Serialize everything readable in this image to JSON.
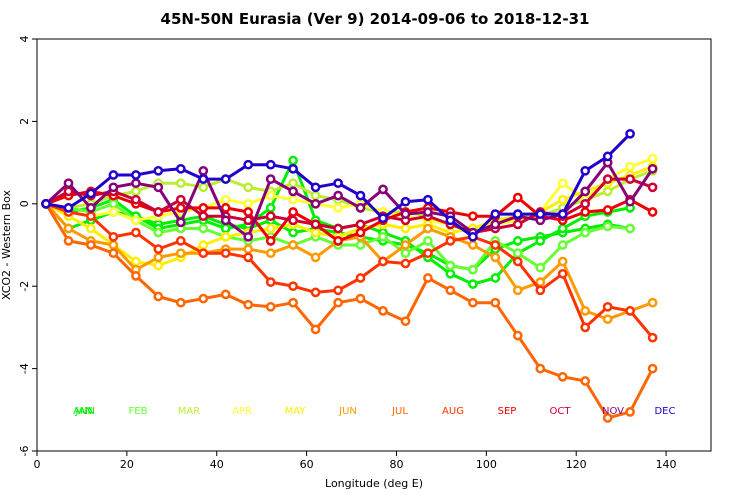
{
  "chart_data": {
    "type": "line",
    "title": "45N-50N Eurasia (Ver 9)   2014-09-06 to 2018-12-31",
    "xlabel": "Longitude (deg E)",
    "ylabel": "XCO2 - Western Box",
    "xlim": [
      0,
      150
    ],
    "ylim": [
      -6,
      4
    ],
    "xticks": [
      0,
      20,
      40,
      60,
      80,
      100,
      120,
      140
    ],
    "yticks": [
      -6,
      -4,
      -2,
      0,
      2,
      4
    ],
    "grid": false,
    "legend_position": "bottom-inside",
    "series": [
      {
        "name": "JAN",
        "color": "#00ee00",
        "x": [
          2,
          7,
          12,
          17,
          22,
          27,
          32,
          37,
          42,
          47,
          52,
          57,
          62,
          67,
          72,
          77,
          82,
          87,
          92,
          97,
          102,
          107,
          112,
          117,
          122,
          127,
          132
        ],
        "y": [
          0,
          -0.6,
          -0.4,
          -0.2,
          -0.3,
          -0.5,
          -0.4,
          -0.3,
          -0.5,
          -0.6,
          -0.4,
          -0.7,
          -0.6,
          -0.7,
          -0.8,
          -0.9,
          -1.0,
          -1.2,
          -1.5,
          -1.6,
          -1.1,
          -0.9,
          -0.8,
          -0.7,
          -0.6,
          -0.5,
          -0.6
        ]
      },
      {
        "name": "ANN",
        "color": "#00ee00",
        "x": [
          2,
          7,
          12,
          17,
          22,
          27,
          32,
          37,
          42,
          47,
          52,
          57,
          62,
          67,
          72,
          77,
          82,
          87,
          92,
          97,
          102,
          107,
          112,
          117,
          122,
          127,
          132
        ],
        "y": [
          0,
          -0.2,
          -0.1,
          0.1,
          -0.3,
          -0.6,
          -0.5,
          -0.4,
          -0.6,
          -0.5,
          -0.1,
          1.05,
          -0.4,
          -0.6,
          -0.5,
          -0.7,
          -0.9,
          -1.3,
          -1.7,
          -1.95,
          -1.8,
          -1.2,
          -0.9,
          -0.6,
          -0.3,
          -0.2,
          -0.1
        ]
      },
      {
        "name": "FEB",
        "color": "#66ff33",
        "x": [
          2,
          7,
          12,
          17,
          22,
          27,
          32,
          37,
          42,
          47,
          52,
          57,
          62,
          67,
          72,
          77,
          82,
          87,
          92,
          97,
          102,
          107,
          112,
          117,
          122,
          127,
          132
        ],
        "y": [
          0,
          -0.1,
          -0.2,
          0.0,
          -0.4,
          -0.7,
          -0.6,
          -0.6,
          -0.8,
          -0.9,
          -0.8,
          -1.0,
          -0.8,
          -1.0,
          -1.0,
          -0.8,
          -1.2,
          -0.9,
          -1.5,
          -1.6,
          -0.9,
          -1.2,
          -1.55,
          -1.0,
          -0.7,
          -0.55,
          -0.6
        ]
      },
      {
        "name": "MAR",
        "color": "#bbee33",
        "x": [
          2,
          7,
          12,
          17,
          22,
          27,
          32,
          37,
          42,
          47,
          52,
          57,
          62,
          67,
          72,
          77,
          82,
          87,
          92,
          97,
          102,
          107,
          112,
          117,
          122,
          127,
          132,
          137
        ],
        "y": [
          0,
          -0.1,
          0.0,
          0.2,
          0.3,
          0.5,
          0.5,
          0.4,
          0.6,
          0.4,
          0.3,
          0.5,
          0.2,
          0.1,
          -0.1,
          -0.2,
          -0.2,
          -0.3,
          -0.5,
          -0.6,
          -0.5,
          -0.4,
          -0.3,
          -0.1,
          0.1,
          0.3,
          0.6,
          0.8
        ]
      },
      {
        "name": "APR",
        "color": "#ffff33",
        "x": [
          2,
          7,
          12,
          17,
          22,
          27,
          32,
          37,
          42,
          47,
          52,
          57,
          62,
          67,
          72,
          77,
          82,
          87,
          92,
          97,
          102,
          107,
          112,
          117,
          122,
          127,
          132,
          137
        ],
        "y": [
          0,
          -0.2,
          -0.3,
          -0.2,
          -0.4,
          -0.3,
          -0.2,
          -0.1,
          0.1,
          0.0,
          0.2,
          0.1,
          0.0,
          -0.1,
          0.0,
          -0.2,
          -0.3,
          -0.4,
          -0.5,
          -0.6,
          -0.5,
          -0.4,
          -0.2,
          0.5,
          0.1,
          0.6,
          0.9,
          1.1
        ]
      },
      {
        "name": "MAY",
        "color": "#ffee00",
        "x": [
          2,
          7,
          12,
          17,
          22,
          27,
          32,
          37,
          42,
          47,
          52,
          57,
          62,
          67,
          72,
          77,
          82,
          87,
          92,
          97,
          102,
          107,
          112,
          117,
          122,
          127,
          132,
          137
        ],
        "y": [
          0,
          -0.3,
          -0.6,
          -1.0,
          -1.4,
          -1.5,
          -1.3,
          -1.0,
          -0.8,
          -0.7,
          -0.6,
          -0.5,
          -0.7,
          -0.8,
          -0.6,
          -0.5,
          -0.6,
          -0.5,
          -0.7,
          -0.6,
          -0.4,
          -0.3,
          -0.2,
          0.1,
          0.3,
          0.5,
          0.7,
          0.9
        ]
      },
      {
        "name": "JUN",
        "color": "#ff9900",
        "x": [
          2,
          7,
          12,
          17,
          22,
          27,
          32,
          37,
          42,
          47,
          52,
          57,
          62,
          67,
          72,
          77,
          82,
          87,
          92,
          97,
          102,
          107,
          112,
          117,
          122,
          127,
          132,
          137
        ],
        "y": [
          0,
          -0.6,
          -0.9,
          -1.0,
          -1.6,
          -1.3,
          -1.2,
          -1.2,
          -1.1,
          -1.1,
          -1.2,
          -1.0,
          -1.3,
          -0.9,
          -0.8,
          -1.4,
          -1.0,
          -0.6,
          -0.8,
          -1.0,
          -1.3,
          -2.1,
          -1.9,
          -1.4,
          -2.6,
          -2.8,
          -2.6,
          -2.4
        ]
      },
      {
        "name": "JUL",
        "color": "#ff6600",
        "x": [
          2,
          7,
          12,
          17,
          22,
          27,
          32,
          37,
          42,
          47,
          52,
          57,
          62,
          67,
          72,
          77,
          82,
          87,
          92,
          97,
          102,
          107,
          112,
          117,
          122,
          127,
          132,
          137
        ],
        "y": [
          0,
          -0.9,
          -1.0,
          -1.2,
          -1.75,
          -2.25,
          -2.4,
          -2.3,
          -2.2,
          -2.45,
          -2.5,
          -2.4,
          -3.05,
          -2.4,
          -2.3,
          -2.6,
          -2.85,
          -1.8,
          -2.1,
          -2.4,
          -2.4,
          -3.2,
          -4.0,
          -4.2,
          -4.3,
          -5.2,
          -5.05,
          -4.0
        ]
      },
      {
        "name": "AUG",
        "color": "#ff3300",
        "x": [
          2,
          7,
          12,
          17,
          22,
          27,
          32,
          37,
          42,
          47,
          52,
          57,
          62,
          67,
          72,
          77,
          82,
          87,
          92,
          97,
          102,
          107,
          112,
          117,
          122,
          127,
          132,
          137
        ],
        "y": [
          0,
          -0.2,
          -0.3,
          -0.8,
          -0.7,
          -1.1,
          -0.9,
          -1.2,
          -1.2,
          -1.3,
          -1.9,
          -2.0,
          -2.15,
          -2.1,
          -1.8,
          -1.4,
          -1.45,
          -1.2,
          -0.9,
          -0.8,
          -1.0,
          -1.4,
          -2.1,
          -1.7,
          -3.0,
          -2.5,
          -2.6,
          -3.25
        ]
      },
      {
        "name": "SEP",
        "color": "#ee0000",
        "x": [
          2,
          7,
          12,
          17,
          22,
          27,
          32,
          37,
          42,
          47,
          52,
          57,
          62,
          67,
          72,
          77,
          82,
          87,
          92,
          97,
          102,
          107,
          112,
          117,
          122,
          127,
          132,
          137
        ],
        "y": [
          0,
          0.2,
          0.3,
          0.2,
          0.0,
          -0.2,
          -0.1,
          -0.1,
          -0.1,
          -0.2,
          -0.9,
          -0.2,
          -0.5,
          -0.9,
          -0.7,
          -0.4,
          -0.2,
          -0.1,
          -0.2,
          -0.3,
          -0.3,
          0.15,
          -0.3,
          -0.4,
          -0.2,
          -0.15,
          0.1,
          -0.2
        ]
      },
      {
        "name": "OCT",
        "color": "#cc0033",
        "x": [
          2,
          7,
          12,
          17,
          22,
          27,
          32,
          37,
          42,
          47,
          52,
          57,
          62,
          67,
          72,
          77,
          82,
          87,
          92,
          97,
          102,
          107,
          112,
          117,
          122,
          127,
          132,
          137
        ],
        "y": [
          0,
          0.3,
          0.2,
          0.3,
          0.1,
          -0.2,
          0.1,
          -0.3,
          -0.3,
          -0.4,
          -0.3,
          -0.4,
          -0.5,
          -0.6,
          -0.5,
          -0.3,
          -0.4,
          -0.3,
          -0.5,
          -0.7,
          -0.6,
          -0.5,
          -0.2,
          -0.3,
          0.0,
          0.6,
          0.6,
          0.4
        ]
      },
      {
        "name": "NOV",
        "color": "#880077",
        "x": [
          2,
          7,
          12,
          17,
          22,
          27,
          32,
          37,
          42,
          47,
          52,
          57,
          62,
          67,
          72,
          77,
          82,
          87,
          92,
          97,
          102,
          107,
          112,
          117,
          122,
          127,
          132,
          137
        ],
        "y": [
          0,
          0.5,
          -0.1,
          0.4,
          0.5,
          0.4,
          -0.45,
          0.8,
          -0.4,
          -0.8,
          0.6,
          0.3,
          0.0,
          0.2,
          -0.1,
          0.35,
          -0.25,
          -0.2,
          -0.3,
          -0.7,
          -0.5,
          -0.3,
          -0.4,
          -0.25,
          0.3,
          1.0,
          0.05,
          0.85
        ]
      },
      {
        "name": "DEC",
        "color": "#2200cc",
        "x": [
          2,
          7,
          12,
          17,
          22,
          27,
          32,
          37,
          42,
          47,
          52,
          57,
          62,
          67,
          72,
          77,
          82,
          87,
          92,
          97,
          102,
          107,
          112,
          117,
          122,
          127,
          132
        ],
        "y": [
          0,
          -0.1,
          0.25,
          0.7,
          0.7,
          0.8,
          0.85,
          0.6,
          0.6,
          0.95,
          0.95,
          0.85,
          0.4,
          0.5,
          0.2,
          -0.35,
          0.05,
          0.1,
          -0.4,
          -0.8,
          -0.25,
          -0.25,
          -0.25,
          -0.25,
          0.8,
          1.15,
          1.7
        ]
      }
    ],
    "legend": [
      {
        "label": "JAN",
        "color": "#00ee00"
      },
      {
        "label": "ANN",
        "color": "#00ee00"
      },
      {
        "label": "FEB",
        "color": "#66ff33"
      },
      {
        "label": "MAR",
        "color": "#bbee33"
      },
      {
        "label": "APR",
        "color": "#ffff33"
      },
      {
        "label": "MAY",
        "color": "#ffee00"
      },
      {
        "label": "JUN",
        "color": "#ff9900"
      },
      {
        "label": "JUL",
        "color": "#ff6600"
      },
      {
        "label": "AUG",
        "color": "#ff3300"
      },
      {
        "label": "SEP",
        "color": "#ee0000"
      },
      {
        "label": "OCT",
        "color": "#cc0033"
      },
      {
        "label": "NOV",
        "color": "#880077"
      },
      {
        "label": "DEC",
        "color": "#2200cc"
      }
    ]
  }
}
